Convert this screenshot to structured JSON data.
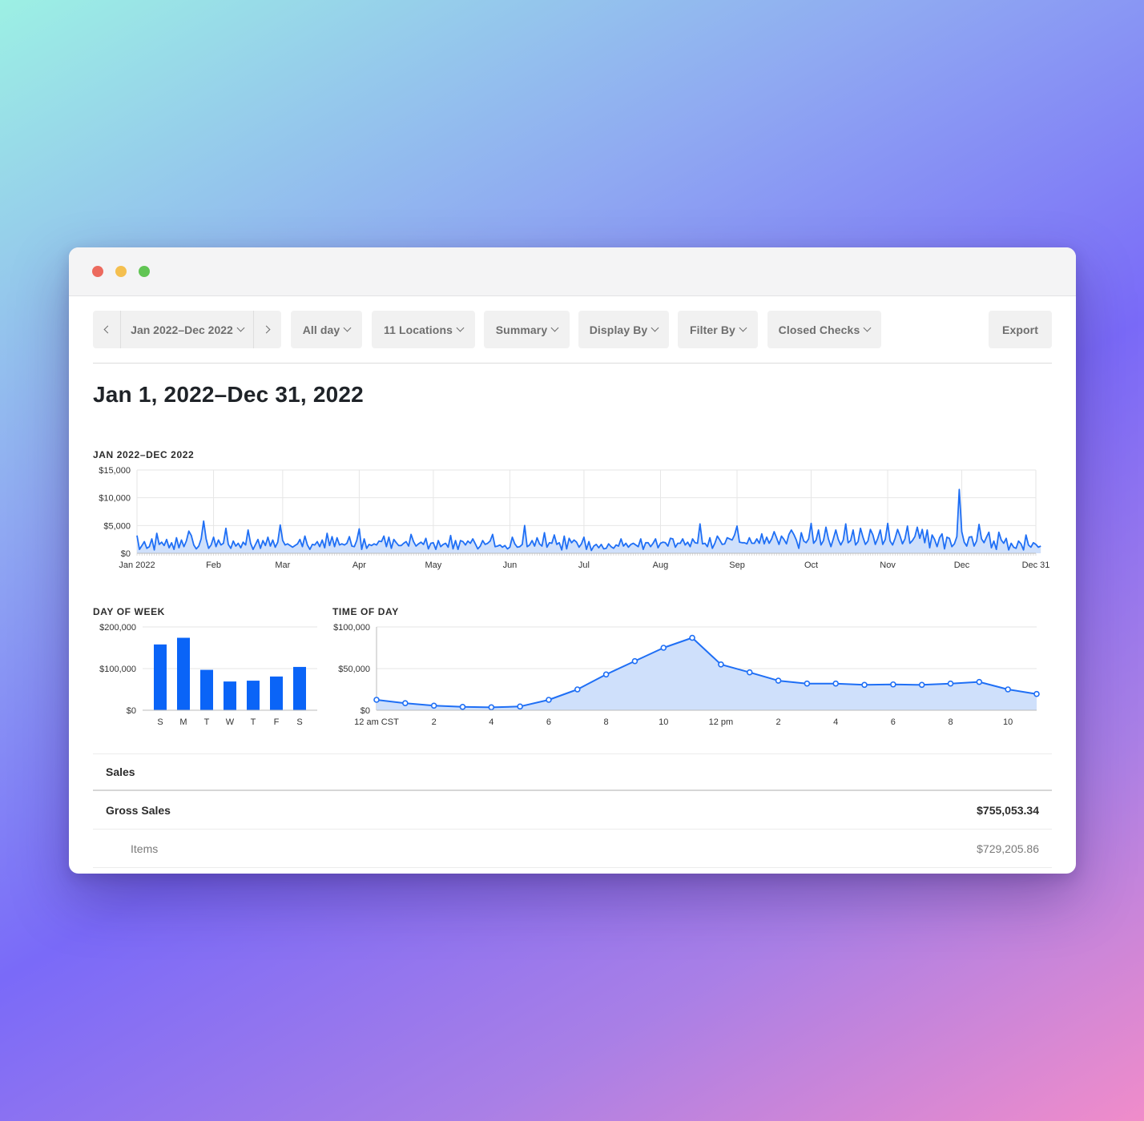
{
  "window": {
    "controls": [
      "close",
      "minimize",
      "zoom"
    ]
  },
  "toolbar": {
    "prev_icon": "chevron-left-icon",
    "next_icon": "chevron-right-icon",
    "date_range": "Jan 2022–Dec 2022",
    "time_range": "All day",
    "locations": "11 Locations",
    "report_type": "Summary",
    "display_by": "Display By",
    "filter_by": "Filter By",
    "check_status": "Closed Checks",
    "export": "Export"
  },
  "page_title": "Jan 1, 2022–Dec 31, 2022",
  "colors": {
    "accent": "#1f6ff5",
    "bar": "#0a64f7",
    "fill": "#cfe0fb",
    "grid": "#e6e6e6"
  },
  "chart_data": [
    {
      "id": "daily",
      "type": "area",
      "title": "JAN 2022–DEC 2022",
      "ylim": [
        0,
        15000
      ],
      "yticks": [
        "$15,000",
        "$10,000",
        "$5,000",
        "$0"
      ],
      "ytick_values": [
        15000,
        10000,
        5000,
        0
      ],
      "xticks": [
        "Jan 2022",
        "Feb",
        "Mar",
        "Apr",
        "May",
        "Jun",
        "Jul",
        "Aug",
        "Sep",
        "Oct",
        "Nov",
        "Dec",
        "Dec 31"
      ],
      "xtick_days": [
        0,
        31,
        59,
        90,
        120,
        151,
        181,
        212,
        243,
        273,
        304,
        334,
        364
      ],
      "days": 365,
      "values": [
        3200,
        700,
        1400,
        2100,
        900,
        1200,
        2600,
        600,
        3600,
        1600,
        2000,
        1400,
        2500,
        1000,
        1900,
        700,
        2800,
        1000,
        2400,
        1200,
        2200,
        4000,
        3200,
        1500,
        800,
        1300,
        2600,
        5800,
        2600,
        900,
        1500,
        2900,
        1200,
        2400,
        1500,
        1800,
        4500,
        1600,
        900,
        2200,
        1300,
        1800,
        1000,
        2000,
        1500,
        4200,
        1800,
        700,
        1600,
        2500,
        900,
        2300,
        1400,
        2900,
        1300,
        2400,
        1100,
        2000,
        5100,
        2300,
        1500,
        1700,
        1400,
        1100,
        1400,
        1700,
        2500,
        1200,
        3100,
        1500,
        700,
        1600,
        1500,
        2100,
        1200,
        2400,
        1000,
        3600,
        1400,
        3000,
        1200,
        2800,
        1500,
        1700,
        1500,
        1800,
        3000,
        1300,
        1200,
        2300,
        4400,
        700,
        2600,
        900,
        1600,
        1400,
        1700,
        1500,
        2200,
        2100,
        3100,
        1200,
        2900,
        900,
        2500,
        1900,
        1400,
        1400,
        1800,
        2100,
        1300,
        3400,
        2100,
        1300,
        1700,
        2000,
        1600,
        2700,
        800,
        1800,
        1900,
        700,
        2300,
        1200,
        1600,
        1800,
        1100,
        3200,
        800,
        2300,
        700,
        2300,
        2100,
        1500,
        2200,
        1800,
        2600,
        1700,
        800,
        1300,
        2300,
        1600,
        1800,
        2200,
        3400,
        1200,
        1300,
        1500,
        1100,
        1400,
        800,
        1100,
        2900,
        1700,
        1100,
        1200,
        1600,
        5000,
        1200,
        1500,
        2300,
        1300,
        2800,
        1700,
        1300,
        3700,
        1100,
        1900,
        1800,
        3300,
        1600,
        1900,
        600,
        3100,
        800,
        2700,
        1900,
        2400,
        2000,
        1100,
        1700,
        2900,
        700,
        2100,
        500,
        1300,
        1600,
        1000,
        1600,
        800,
        900,
        1700,
        1200,
        900,
        1500,
        1300,
        2600,
        1300,
        1800,
        1100,
        1600,
        1800,
        1500,
        1200,
        2600,
        700,
        1900,
        1900,
        1200,
        1800,
        2600,
        1000,
        1800,
        2000,
        1900,
        1300,
        2700,
        2600,
        1100,
        1800,
        1800,
        2600,
        1500,
        2000,
        1200,
        2600,
        1900,
        1800,
        5300,
        1700,
        1800,
        1200,
        2800,
        900,
        1800,
        3100,
        2400,
        1600,
        1700,
        2800,
        2600,
        2400,
        3300,
        4900,
        2000,
        1900,
        1900,
        1700,
        2800,
        1800,
        1800,
        2600,
        1800,
        3500,
        1700,
        2900,
        1800,
        2600,
        3900,
        2800,
        1600,
        3100,
        2500,
        1700,
        3400,
        4200,
        3400,
        2400,
        900,
        3700,
        2200,
        1900,
        2600,
        5400,
        1800,
        2400,
        4200,
        1500,
        2300,
        4700,
        2600,
        1200,
        2600,
        4200,
        2500,
        1500,
        2400,
        5300,
        1900,
        2300,
        4200,
        1500,
        2100,
        4500,
        2900,
        1600,
        2200,
        4300,
        3300,
        1600,
        2700,
        4200,
        1600,
        2500,
        5400,
        2200,
        1500,
        2700,
        4300,
        3100,
        1700,
        2600,
        4900,
        1800,
        2300,
        3000,
        4700,
        2700,
        4300,
        1900,
        4200,
        1000,
        3300,
        2500,
        1200,
        2800,
        3500,
        800,
        2900,
        2700,
        1200,
        1700,
        3000,
        11500,
        3900,
        2000,
        1300,
        2900,
        3000,
        1300,
        2200,
        5200,
        2600,
        1900,
        2900,
        3800,
        1000,
        2200,
        700,
        3800,
        2400,
        1800,
        2700,
        600,
        1800,
        1100,
        900,
        2200,
        1700,
        600,
        3300,
        1500,
        1100,
        1900,
        1600,
        1100,
        1300
      ],
      "grid": true
    },
    {
      "id": "day_of_week",
      "type": "bar",
      "title": "DAY OF WEEK",
      "categories": [
        "S",
        "M",
        "T",
        "W",
        "T",
        "F",
        "S"
      ],
      "values": [
        158000,
        174000,
        97000,
        69000,
        71000,
        81000,
        104000
      ],
      "ylim": [
        0,
        200000
      ],
      "yticks": [
        "$200,000",
        "$100,000",
        "$0"
      ],
      "ytick_values": [
        200000,
        100000,
        0
      ]
    },
    {
      "id": "time_of_day",
      "type": "area",
      "title": "TIME OF DAY",
      "x": [
        0,
        1,
        2,
        3,
        4,
        5,
        6,
        7,
        8,
        9,
        10,
        11,
        12,
        13,
        14,
        15,
        16,
        17,
        18,
        19,
        20,
        21,
        22,
        23
      ],
      "values": [
        12500,
        8500,
        5500,
        4000,
        3500,
        4500,
        12500,
        25000,
        43000,
        59000,
        75000,
        87000,
        55000,
        45500,
        35500,
        32000,
        32000,
        30500,
        31000,
        30500,
        32000,
        34000,
        25000,
        19500
      ],
      "xticks": [
        "12 am CST",
        "2",
        "4",
        "6",
        "8",
        "10",
        "12 pm",
        "2",
        "4",
        "6",
        "8",
        "10"
      ],
      "xtick_hours": [
        0,
        2,
        4,
        6,
        8,
        10,
        12,
        14,
        16,
        18,
        20,
        22
      ],
      "ylim": [
        0,
        100000
      ],
      "yticks": [
        "$100,000",
        "$50,000",
        "$0"
      ],
      "ytick_values": [
        100000,
        50000,
        0
      ]
    }
  ],
  "table": {
    "section": "Sales",
    "rows": [
      {
        "label": "Gross Sales",
        "value": "$755,053.34"
      },
      {
        "label": "Items",
        "value": "$729,205.86"
      }
    ]
  }
}
